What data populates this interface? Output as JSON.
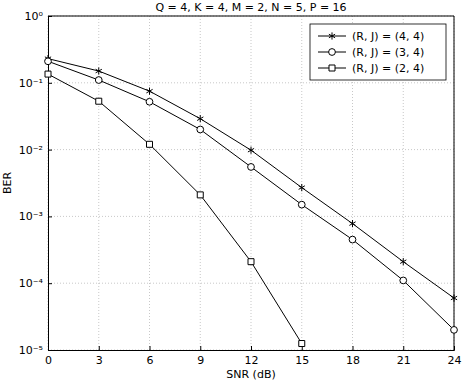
{
  "chart_data": {
    "type": "line",
    "title": "Q = 4, K = 4, M = 2, N = 5, P = 16",
    "x_label": "SNR (dB)",
    "y_label": "BER",
    "x": [
      0,
      3,
      6,
      9,
      12,
      15,
      18,
      21,
      24
    ],
    "series": [
      {
        "name": "(R, J) = (4, 4)",
        "color": "#000000",
        "marker": "star",
        "line_style": "solid",
        "values": [
          0.23,
          0.15,
          0.075,
          0.029,
          0.0098,
          0.0027,
          0.00078,
          0.00021,
          6e-05
        ]
      },
      {
        "name": "(R, J) = (3, 4)",
        "color": "#000000",
        "marker": "circle",
        "line_style": "solid",
        "values": [
          0.21,
          0.11,
          0.052,
          0.02,
          0.0055,
          0.0015,
          0.00045,
          0.00011,
          2e-05
        ]
      },
      {
        "name": "(R, J) = (2, 4)",
        "color": "#000000",
        "marker": "square",
        "line_style": "solid",
        "values": [
          0.135,
          0.053,
          0.012,
          0.0021,
          0.00021,
          1.25e-05,
          null,
          null,
          null
        ]
      }
    ],
    "xlim": [
      0,
      24
    ],
    "xticks": [
      0,
      3,
      6,
      9,
      12,
      15,
      18,
      21,
      24
    ],
    "ylim": [
      1e-05,
      1
    ],
    "yticks": [
      {
        "value": 1e-05,
        "label": "10⁻⁵"
      },
      {
        "value": 0.0001,
        "label": "10⁻⁴"
      },
      {
        "value": 0.001,
        "label": "10⁻³"
      },
      {
        "value": 0.01,
        "label": "10⁻²"
      },
      {
        "value": 0.1,
        "label": "10⁻¹"
      },
      {
        "value": 1,
        "label": "10⁰"
      }
    ],
    "log": "y",
    "grid": true,
    "legend": "upper right"
  }
}
